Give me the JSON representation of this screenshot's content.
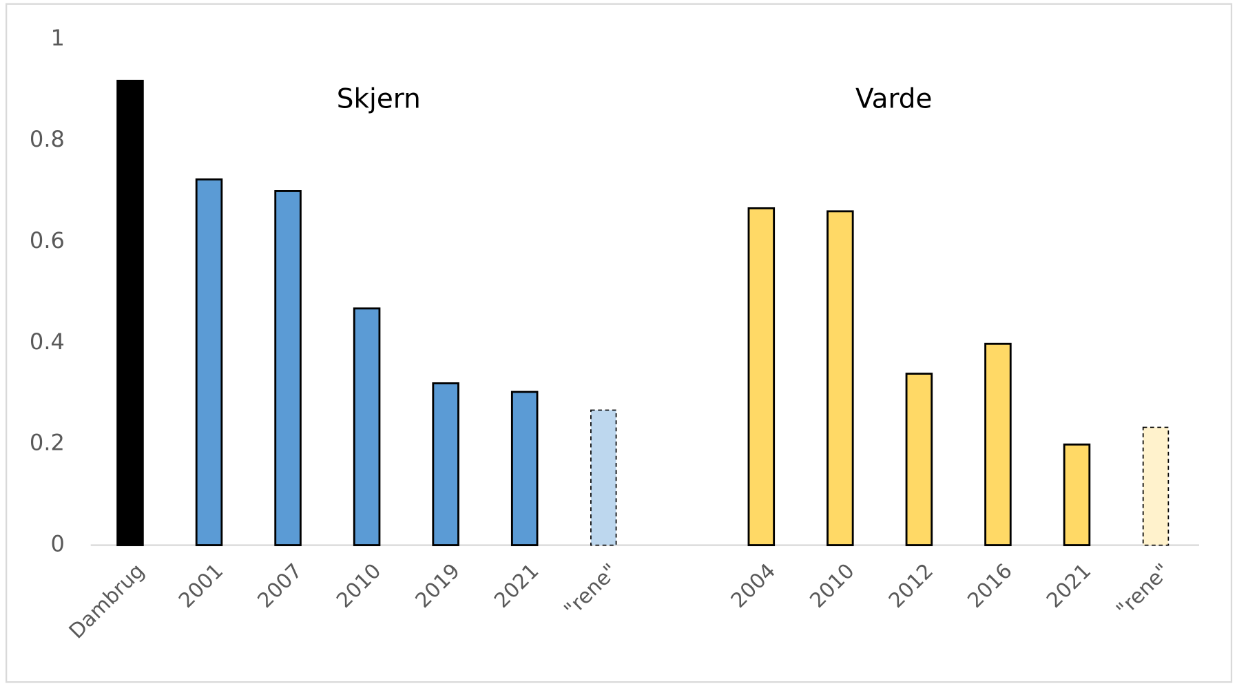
{
  "chart_data": {
    "type": "bar",
    "group_labels": [
      "Skjern",
      "Varde"
    ],
    "categories": [
      "Dambrug",
      "2001",
      "2007",
      "2010",
      "2019",
      "2021",
      "\"rene\"",
      null,
      "2004",
      "2010",
      "2012",
      "2016",
      "2021",
      "\"rene\""
    ],
    "values": [
      0.918,
      0.723,
      0.7,
      0.468,
      0.32,
      0.303,
      0.267,
      null,
      0.666,
      0.66,
      0.339,
      0.398,
      0.199,
      0.233
    ],
    "colors": [
      "#000000",
      "#5b9bd5",
      "#5b9bd5",
      "#5b9bd5",
      "#5b9bd5",
      "#5b9bd5",
      "#bdd7ee",
      null,
      "#ffd966",
      "#ffd966",
      "#ffd966",
      "#ffd966",
      "#ffd966",
      "#fff2cc"
    ],
    "dashed": [
      false,
      false,
      false,
      false,
      false,
      false,
      true,
      null,
      false,
      false,
      false,
      false,
      false,
      true
    ],
    "ylim": [
      0,
      1
    ],
    "yticks": [
      0,
      0.2,
      0.4,
      0.6,
      0.8,
      1
    ],
    "grid": false
  }
}
